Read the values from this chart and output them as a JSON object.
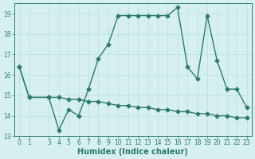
{
  "xlabel": "Humidex (Indice chaleur)",
  "line1_x": [
    0,
    1,
    3,
    4,
    5,
    6,
    7,
    8,
    9,
    10,
    11,
    12,
    13,
    14,
    15,
    16,
    17,
    18,
    19,
    20,
    21,
    22,
    23
  ],
  "line1_y": [
    16.4,
    14.9,
    14.9,
    13.3,
    14.3,
    14.0,
    15.3,
    16.8,
    17.5,
    18.9,
    18.9,
    18.9,
    18.9,
    18.9,
    18.9,
    19.3,
    16.4,
    15.8,
    18.9,
    16.7,
    15.3,
    15.3,
    14.4
  ],
  "line2_x": [
    0,
    1,
    3,
    4,
    5,
    6,
    7,
    8,
    9,
    10,
    11,
    12,
    13,
    14,
    15,
    16,
    17,
    18,
    19,
    20,
    21,
    22,
    23
  ],
  "line2_y": [
    16.4,
    14.9,
    14.9,
    14.9,
    14.8,
    14.8,
    14.7,
    14.7,
    14.6,
    14.5,
    14.5,
    14.4,
    14.4,
    14.3,
    14.3,
    14.2,
    14.2,
    14.1,
    14.1,
    14.0,
    14.0,
    13.9,
    13.9
  ],
  "line_color": "#2d7a6e",
  "marker": "D",
  "markersize": 2.5,
  "bg_color": "#d6f0ef",
  "grid_color": "#b8dedd",
  "ylim": [
    13,
    19.5
  ],
  "xlim": [
    -0.5,
    23.5
  ],
  "yticks": [
    13,
    14,
    15,
    16,
    17,
    18,
    19
  ],
  "xticks": [
    0,
    1,
    3,
    4,
    5,
    6,
    7,
    8,
    9,
    10,
    11,
    12,
    13,
    14,
    15,
    16,
    17,
    18,
    19,
    20,
    21,
    22,
    23
  ],
  "tick_fontsize": 5.5,
  "xlabel_fontsize": 7,
  "linewidth": 1.0
}
